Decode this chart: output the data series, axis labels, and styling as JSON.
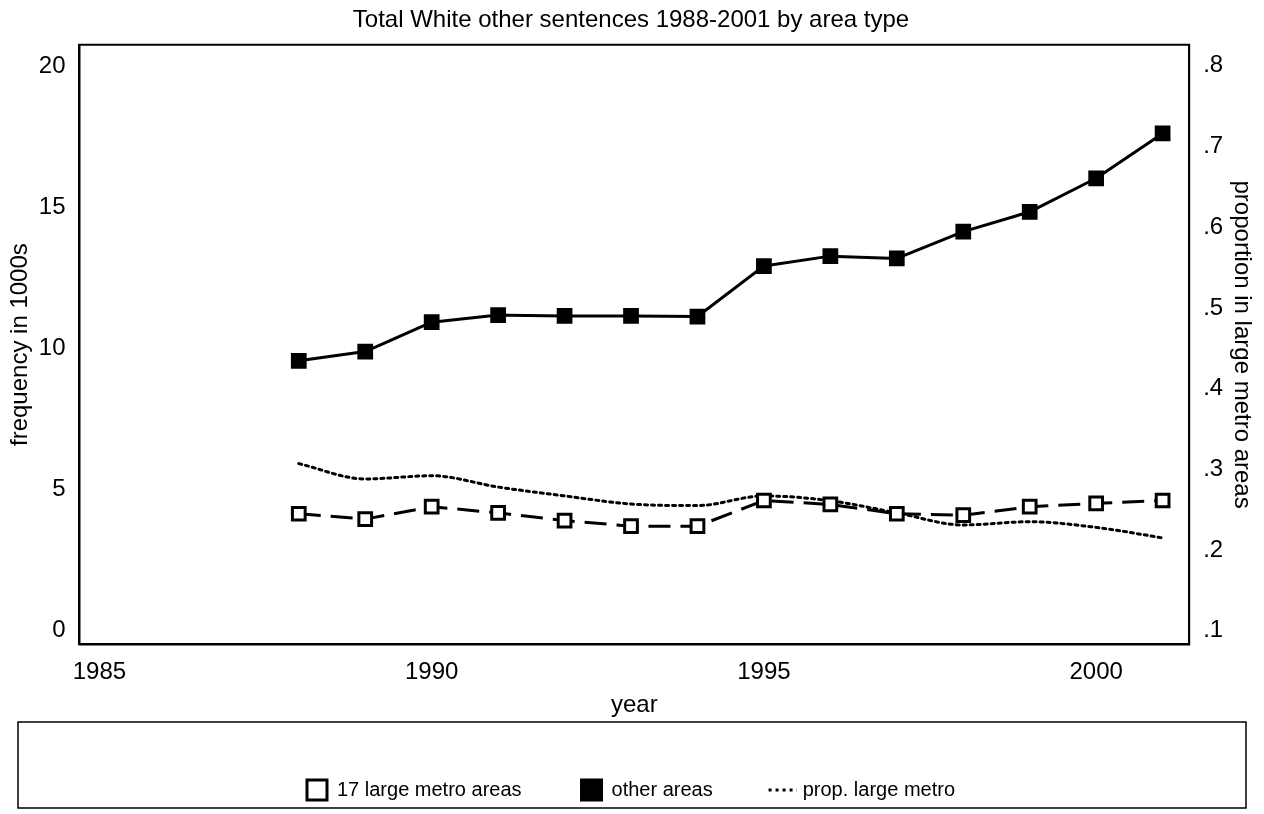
{
  "chart_data": {
    "type": "line",
    "title": "Total White other sentences 1988-2001 by area type",
    "xlabel": "year",
    "ylabel": "frequency in 1000s",
    "y2label": "proportion in large metro areas",
    "x": [
      1988,
      1989,
      1990,
      1991,
      1992,
      1993,
      1994,
      1995,
      1996,
      1997,
      1998,
      1999,
      2000,
      2001
    ],
    "xlim": [
      1984.7,
      2001.4
    ],
    "xticks": [
      1985,
      1990,
      1995,
      2000
    ],
    "ylim": [
      -0.5,
      20.75
    ],
    "yticks": [
      0,
      5,
      10,
      15,
      20
    ],
    "y2lim": [
      0.083,
      0.826
    ],
    "y2ticks": [
      {
        "value": 0.1,
        "label": ".1"
      },
      {
        "value": 0.2,
        "label": ".2"
      },
      {
        "value": 0.3,
        "label": ".3"
      },
      {
        "value": 0.4,
        "label": ".4"
      },
      {
        "value": 0.5,
        "label": ".5"
      },
      {
        "value": 0.6,
        "label": ".6"
      },
      {
        "value": 0.7,
        "label": ".7"
      },
      {
        "value": 0.8,
        "label": ".8"
      }
    ],
    "legend": "bottom",
    "series": [
      {
        "name": "17 large metro areas",
        "color": "#000000",
        "marker": "square",
        "line_style": "dashed",
        "values": [
          4.13,
          3.94,
          4.38,
          4.16,
          3.89,
          3.69,
          3.69,
          4.6,
          4.46,
          4.13,
          4.08,
          4.38,
          4.5,
          4.6
        ]
      },
      {
        "name": "other areas",
        "color": "#000000",
        "marker": "square",
        "line_style": "solid",
        "values": [
          9.55,
          9.88,
          10.92,
          11.17,
          11.14,
          11.14,
          11.12,
          12.91,
          13.26,
          13.18,
          14.13,
          14.83,
          16.02,
          17.61
        ]
      },
      {
        "name": "prop. large metro",
        "color": "#000000",
        "marker": "none",
        "line_style": "dotted",
        "axis": "y2",
        "values": [
          0.307,
          0.288,
          0.292,
          0.278,
          0.267,
          0.257,
          0.255,
          0.267,
          0.261,
          0.246,
          0.231,
          0.235,
          0.228,
          0.215
        ]
      }
    ]
  }
}
